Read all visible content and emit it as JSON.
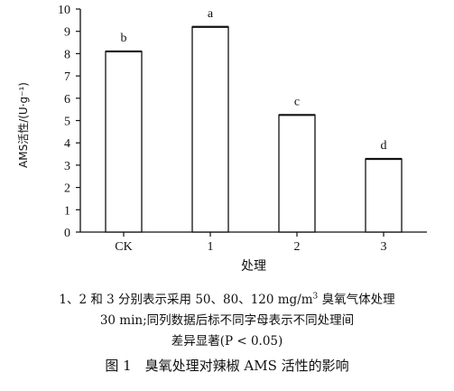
{
  "chart_data": {
    "type": "bar",
    "categories": [
      "CK",
      "1",
      "2",
      "3"
    ],
    "values": [
      8.1,
      9.2,
      5.25,
      3.28
    ],
    "significance": [
      "b",
      "a",
      "c",
      "d"
    ],
    "xlabel": "处理",
    "ylabel": "AMS活性/(U·g⁻¹)",
    "ylim": [
      0,
      10
    ],
    "yticks": [
      0,
      1,
      2,
      3,
      4,
      5,
      6,
      7,
      8,
      9,
      10
    ],
    "grid": false,
    "legend": "none",
    "bar_color": "#ffffff",
    "stroke_color": "#111111"
  },
  "caption": {
    "line1_pre": "1、2 和 3 分别表示采用 50、80、120 mg/m",
    "line1_sup": "3",
    "line1_post": " 臭氧气体处理",
    "line2": "30 min;同列数据后标不同字母表示不同处理间",
    "line3": "差异显著(P < 0.05)",
    "figure_title": "图 1　臭氧处理对辣椒 AMS 活性的影响"
  }
}
